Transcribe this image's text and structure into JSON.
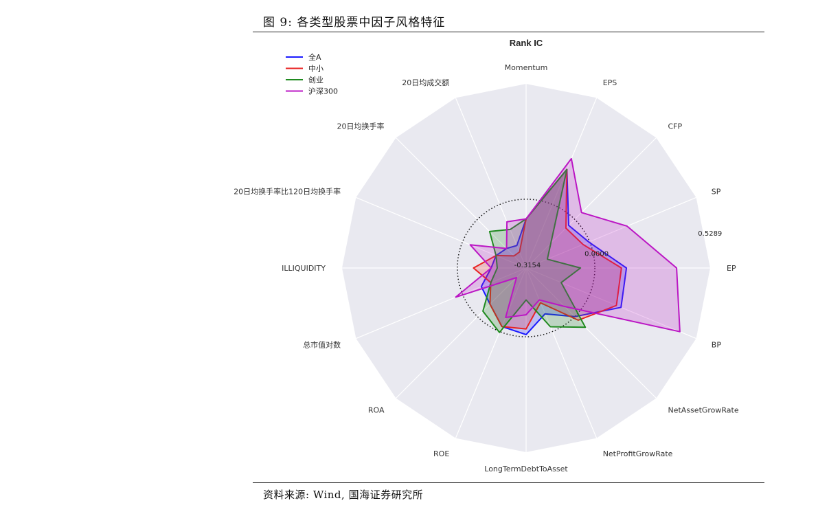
{
  "figure_title": "图 9: 各类型股票中因子风格特征",
  "source_note": "资料来源: Wind, 国海证券研究所",
  "chart_data": {
    "type": "radar",
    "title": "Rank IC",
    "axes": [
      "Momentum",
      "EPS",
      "CFP",
      "SP",
      "EP",
      "BP",
      "NetAssetGrowRate",
      "NetProfitGrowRate",
      "LongTermDebtToAsset",
      "ROE",
      "ROA",
      "总市值对数",
      "ILLIQUIDITY",
      "20日均换手率比120日均换手率",
      "20日均换手率",
      "20日均成交额"
    ],
    "r_range": [
      -0.3154,
      0.5289
    ],
    "r_ticks": [
      -0.3154,
      0.0,
      0.5289
    ],
    "r_tick_labels": [
      "-0.3154",
      "0.0000",
      "0.5289"
    ],
    "zero_ring_style": "dotted",
    "legend_position": "top-left",
    "series": [
      {
        "name": "全A",
        "color": "#1a1aff",
        "values": [
          -0.09,
          0.174,
          -0.039,
          -0.004,
          0.145,
          0.156,
          0.0,
          -0.088,
          -0.01,
          -0.025,
          -0.081,
          -0.093,
          -0.155,
          -0.166,
          -0.189,
          -0.204
        ]
      },
      {
        "name": "中小",
        "color": "#e82222",
        "values": [
          -0.09,
          0.174,
          -0.057,
          -0.033,
          0.122,
          0.133,
          0.023,
          -0.143,
          -0.036,
          -0.025,
          -0.081,
          -0.14,
          -0.074,
          -0.166,
          -0.237,
          -0.236
        ]
      },
      {
        "name": "创业",
        "color": "#1f8a1f",
        "values": [
          -0.09,
          0.174,
          -0.155,
          -0.21,
          -0.066,
          -0.141,
          0.069,
          -0.024,
          -0.169,
          0.004,
          -0.035,
          -0.14,
          -0.183,
          -0.166,
          -0.079,
          -0.124
        ]
      },
      {
        "name": "沪深300",
        "color": "#bb16c4",
        "values": [
          -0.09,
          0.227,
          0.044,
          0.186,
          0.375,
          0.448,
          -0.066,
          -0.157,
          -0.101,
          -0.07,
          -0.253,
          0.034,
          -0.155,
          -0.038,
          -0.189,
          -0.086
        ]
      }
    ]
  }
}
